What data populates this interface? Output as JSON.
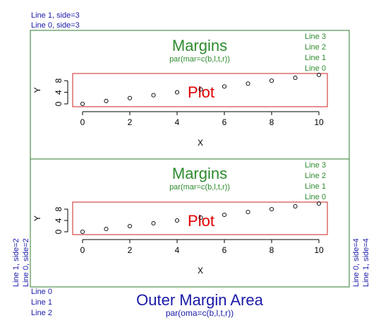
{
  "outer": {
    "top_lines": [
      "Line 1, side=3",
      "Line 0, side=3"
    ],
    "left_lines": [
      "Line 1, side=2",
      "Line 0, side=2"
    ],
    "right_lines": [
      "Line 0, side=4",
      "Line 1, side=4"
    ],
    "bottom_lines": [
      "Line 0",
      "Line 1",
      "Line 2"
    ],
    "title": "Outer Margin Area",
    "subtitle": "par(oma=c(b,l,t,r))",
    "colors": {
      "outer_text": "#1a1aa8",
      "figure_border": "#2e7d2e"
    }
  },
  "figures": [
    {
      "margin_title": "Margins",
      "margin_subtitle": "par(mar=c(b,l,t,r))",
      "margin_lines": [
        "Line 3",
        "Line 2",
        "Line 1",
        "Line 0"
      ],
      "plot_label": "Plot",
      "xlabel": "X",
      "ylabel": "Y"
    },
    {
      "margin_title": "Margins",
      "margin_subtitle": "par(mar=c(b,l,t,r))",
      "margin_lines": [
        "Line 3",
        "Line 2",
        "Line 1",
        "Line 0"
      ],
      "plot_label": "Plot",
      "xlabel": "X",
      "ylabel": "Y"
    }
  ],
  "colors": {
    "margin_text": "#2e8b2e",
    "plot_text": "#e00000",
    "plot_border": "#cc2222"
  },
  "chart_data": [
    {
      "type": "scatter",
      "x": [
        0,
        1,
        2,
        3,
        4,
        5,
        6,
        7,
        8,
        9,
        10
      ],
      "y": [
        0,
        1,
        2,
        3,
        4,
        5,
        6,
        7,
        8,
        9,
        10
      ],
      "xlabel": "X",
      "ylabel": "Y",
      "xlim": [
        0,
        10
      ],
      "ylim": [
        0,
        10
      ],
      "xticks": [
        "0",
        "2",
        "4",
        "6",
        "8",
        "10"
      ],
      "yticks": [
        "0",
        "4",
        "8"
      ],
      "grid": false
    },
    {
      "type": "scatter",
      "x": [
        0,
        1,
        2,
        3,
        4,
        5,
        6,
        7,
        8,
        9,
        10
      ],
      "y": [
        0,
        1,
        2,
        3,
        4,
        5,
        6,
        7,
        8,
        9,
        10
      ],
      "xlabel": "X",
      "ylabel": "Y",
      "xlim": [
        0,
        10
      ],
      "ylim": [
        0,
        10
      ],
      "xticks": [
        "0",
        "2",
        "4",
        "6",
        "8",
        "10"
      ],
      "yticks": [
        "0",
        "4",
        "8"
      ],
      "grid": false
    }
  ]
}
